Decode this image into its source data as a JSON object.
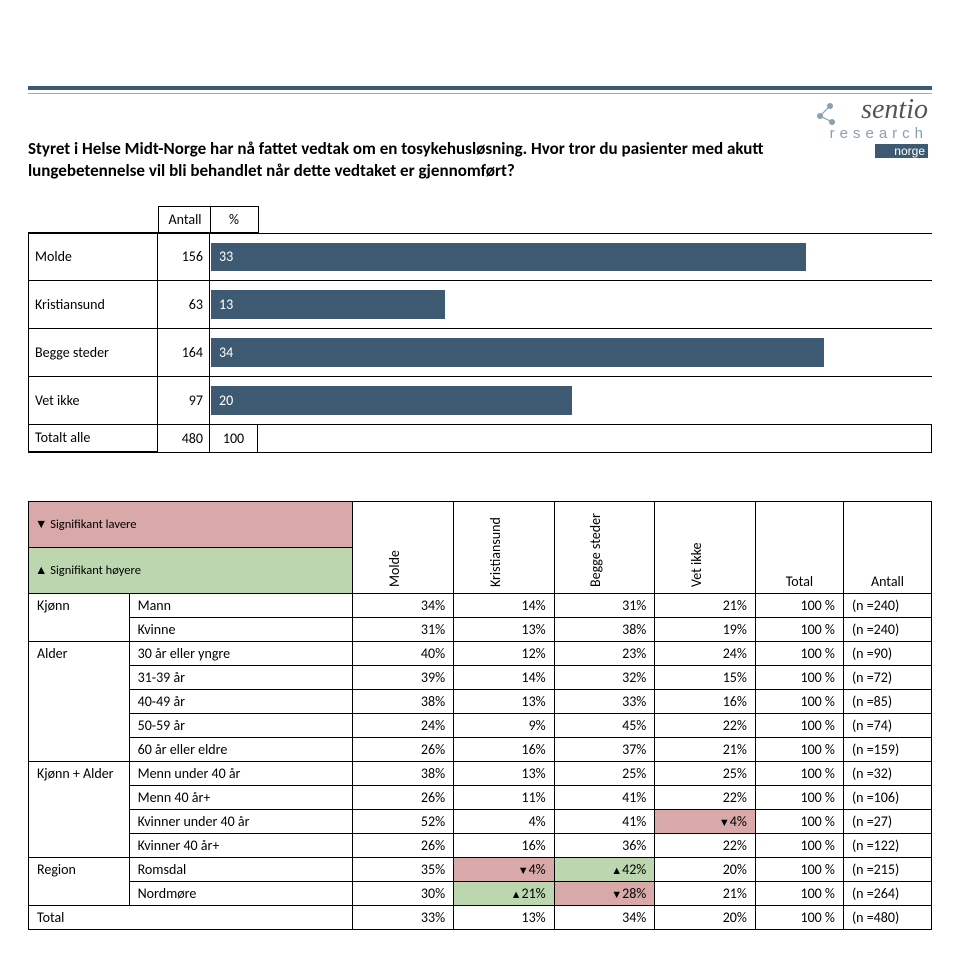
{
  "logo": {
    "line1": "sentio",
    "line2": "research",
    "line3": "norge",
    "bar_color": "#3e5a72",
    "text_color": "#555555",
    "accent_color": "#8aa0b0"
  },
  "question": "Styret i Helse Midt-Norge har nå fattet vedtak om en tosykehusløsning. Hvor tror du pasienter med akutt lungebetennelse vil bli behandlet når dette vedtaket er gjennomført?",
  "bar_chart": {
    "headers": {
      "antall": "Antall",
      "pct": "%"
    },
    "bar_color": "#3e5a72",
    "max_pct": 40,
    "rows": [
      {
        "label": "Molde",
        "antall": 156,
        "pct": 33
      },
      {
        "label": "Kristiansund",
        "antall": 63,
        "pct": 13
      },
      {
        "label": "Begge steder",
        "antall": 164,
        "pct": 34
      },
      {
        "label": "Vet ikke",
        "antall": 97,
        "pct": 20
      }
    ],
    "total": {
      "label": "Totalt alle",
      "antall": 480,
      "pct": 100
    }
  },
  "cross_table": {
    "legend_low": "▼ Signifikant lavere",
    "legend_high": "▲ Signifikant høyere",
    "columns": [
      "Molde",
      "Kristiansund",
      "Begge steder",
      "Vet ikke"
    ],
    "total_label": "Total",
    "antall_label": "Antall",
    "low_color": "#d9a8a8",
    "high_color": "#bcd6b0",
    "groups": [
      {
        "name": "Kjønn",
        "rows": [
          {
            "label": "Mann",
            "vals": [
              "34%",
              "14%",
              "31%",
              "21%"
            ],
            "total": "100 %",
            "n": "(n =240)"
          },
          {
            "label": "Kvinne",
            "vals": [
              "31%",
              "13%",
              "38%",
              "19%"
            ],
            "total": "100 %",
            "n": "(n =240)"
          }
        ]
      },
      {
        "name": "Alder",
        "rows": [
          {
            "label": "30 år eller yngre",
            "vals": [
              "40%",
              "12%",
              "23%",
              "24%"
            ],
            "total": "100 %",
            "n": "(n =90)"
          },
          {
            "label": "31-39 år",
            "vals": [
              "39%",
              "14%",
              "32%",
              "15%"
            ],
            "total": "100 %",
            "n": "(n =72)"
          },
          {
            "label": "40-49 år",
            "vals": [
              "38%",
              "13%",
              "33%",
              "16%"
            ],
            "total": "100 %",
            "n": "(n =85)"
          },
          {
            "label": "50-59 år",
            "vals": [
              "24%",
              "9%",
              "45%",
              "22%"
            ],
            "total": "100 %",
            "n": "(n =74)"
          },
          {
            "label": "60 år eller eldre",
            "vals": [
              "26%",
              "16%",
              "37%",
              "21%"
            ],
            "total": "100 %",
            "n": "(n =159)"
          }
        ]
      },
      {
        "name": "Kjønn + Alder",
        "rows": [
          {
            "label": "Menn under 40 år",
            "vals": [
              "38%",
              "13%",
              "25%",
              "25%"
            ],
            "total": "100 %",
            "n": "(n =32)"
          },
          {
            "label": "Menn 40 år+",
            "vals": [
              "26%",
              "11%",
              "41%",
              "22%"
            ],
            "total": "100 %",
            "n": "(n =106)"
          },
          {
            "label": "Kvinner under 40 år",
            "vals": [
              "52%",
              "4%",
              "41%",
              "4%"
            ],
            "marks": [
              null,
              null,
              null,
              "low"
            ],
            "total": "100 %",
            "n": "(n =27)"
          },
          {
            "label": "Kvinner 40 år+",
            "vals": [
              "26%",
              "16%",
              "36%",
              "22%"
            ],
            "total": "100 %",
            "n": "(n =122)"
          }
        ]
      },
      {
        "name": "Region",
        "rows": [
          {
            "label": "Romsdal",
            "vals": [
              "35%",
              "4%",
              "42%",
              "20%"
            ],
            "marks": [
              null,
              "low",
              "high",
              null
            ],
            "total": "100 %",
            "n": "(n =215)"
          },
          {
            "label": "Nordmøre",
            "vals": [
              "30%",
              "21%",
              "28%",
              "21%"
            ],
            "marks": [
              null,
              "high",
              "low",
              null
            ],
            "total": "100 %",
            "n": "(n =264)"
          }
        ]
      }
    ],
    "total_row": {
      "label": "Total",
      "vals": [
        "33%",
        "13%",
        "34%",
        "20%"
      ],
      "total": "100 %",
      "n": "(n =480)"
    }
  }
}
